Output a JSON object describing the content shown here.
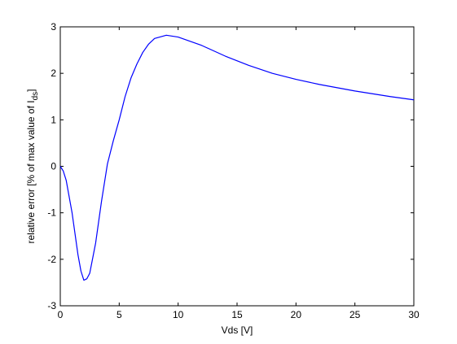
{
  "chart_data": {
    "type": "line",
    "xlabel": "Vds [V]",
    "ylabel": {
      "text": "relative error [% of max value of I",
      "subscript": "ds",
      "suffix": "]"
    },
    "x": [
      0,
      0.25,
      0.5,
      1,
      1.5,
      1.75,
      2,
      2.25,
      2.5,
      3,
      3.5,
      4,
      4.5,
      5,
      5.5,
      6,
      6.5,
      7,
      7.5,
      8,
      9,
      10,
      12,
      14,
      16,
      18,
      20,
      22,
      25,
      28,
      30
    ],
    "series": [
      {
        "color": "#0000ff",
        "values": [
          0,
          -0.1,
          -0.3,
          -1.0,
          -1.9,
          -2.25,
          -2.45,
          -2.42,
          -2.3,
          -1.65,
          -0.75,
          0.05,
          0.55,
          1.0,
          1.5,
          1.9,
          2.2,
          2.45,
          2.63,
          2.75,
          2.82,
          2.78,
          2.6,
          2.37,
          2.17,
          2.0,
          1.87,
          1.76,
          1.62,
          1.5,
          1.43
        ]
      }
    ],
    "xlim": [
      0,
      30
    ],
    "xticks": [
      0,
      5,
      10,
      15,
      20,
      25,
      30
    ],
    "ylim": [
      -3,
      3
    ],
    "yticks": [
      -3,
      -2,
      -1,
      0,
      1,
      2,
      3
    ]
  }
}
